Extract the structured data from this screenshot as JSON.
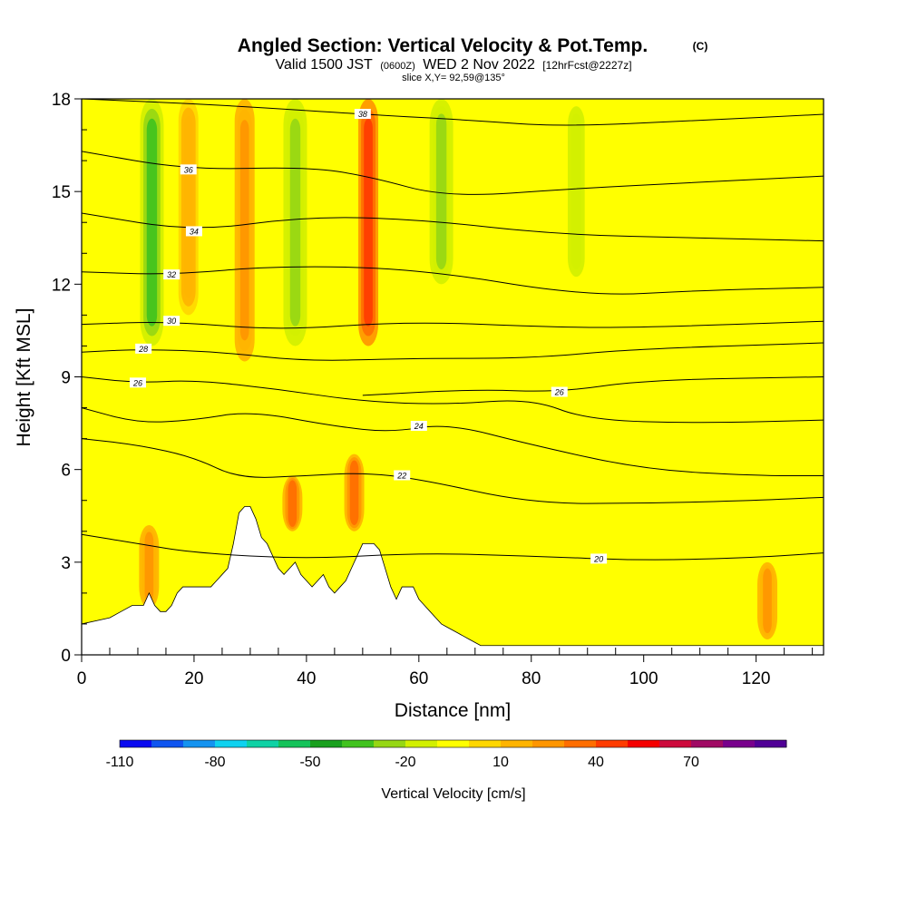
{
  "title": {
    "main": "Angled Section: Vertical Velocity & Pot.Temp.",
    "main_tag": "(C)",
    "line2_a": "Valid 1500 JST",
    "line2_b": "(0600Z)",
    "line2_c": "WED 2 Nov 2022",
    "line2_d": "[12hrFcst@2227z]",
    "line3": "slice X,Y= 92,59@135°"
  },
  "colors": {
    "scale": [
      "#0a0af0",
      "#0f55f0",
      "#1493f0",
      "#0fd2f0",
      "#0fd2a5",
      "#14c35a",
      "#19a01e",
      "#41c31e",
      "#96d714",
      "#d2f000",
      "#ffff00",
      "#ffd700",
      "#ffb400",
      "#ff9600",
      "#ff6e00",
      "#ff3c00",
      "#f50000",
      "#cd0a3c",
      "#a00a64",
      "#78008c",
      "#500096"
    ],
    "terrain": "#ffffff",
    "contour": "#000000"
  },
  "chart_data": {
    "type": "heatmap",
    "xlabel": "Distance [nm]",
    "ylabel": "Height [Kft MSL]",
    "xlim": [
      0,
      132
    ],
    "ylim": [
      0,
      18
    ],
    "xticks": [
      0,
      20,
      40,
      60,
      80,
      100,
      120
    ],
    "yticks": [
      0,
      3,
      6,
      9,
      12,
      15,
      18
    ],
    "colorbar": {
      "label": "Vertical Velocity [cm/s]",
      "ticks": [
        -110,
        -80,
        -50,
        -20,
        10,
        40,
        70
      ],
      "bins": [
        -110,
        -100,
        -90,
        -80,
        -70,
        -60,
        -50,
        -40,
        -30,
        -20,
        -10,
        0,
        10,
        20,
        30,
        40,
        50,
        60,
        70,
        80,
        90,
        100
      ]
    },
    "vertical_velocity_cells": [
      {
        "x": 12,
        "y": [
          1.5,
          4.2
        ],
        "w": 30,
        "peak": "positive"
      },
      {
        "x": 12.5,
        "y": [
          10,
          18
        ],
        "w": -40,
        "peak": "negative"
      },
      {
        "x": 19,
        "y": [
          11,
          18
        ],
        "w": 20,
        "peak": "positive"
      },
      {
        "x": 29,
        "y": [
          9.5,
          18
        ],
        "w": 35,
        "peak": "positive"
      },
      {
        "x": 37.5,
        "y": [
          4,
          5.8
        ],
        "w": 40,
        "peak": "positive"
      },
      {
        "x": 38,
        "y": [
          10,
          18
        ],
        "w": -30,
        "peak": "negative"
      },
      {
        "x": 48.5,
        "y": [
          4,
          6.5
        ],
        "w": 40,
        "peak": "positive"
      },
      {
        "x": 51,
        "y": [
          10,
          18
        ],
        "w": 60,
        "peak": "positive"
      },
      {
        "x": 64,
        "y": [
          12,
          18
        ],
        "w": -30,
        "peak": "negative"
      },
      {
        "x": 88,
        "y": [
          12,
          18
        ],
        "w": -25,
        "peak": "negative"
      },
      {
        "x": 122,
        "y": [
          0.5,
          3
        ],
        "w": 30,
        "peak": "positive"
      }
    ],
    "terrain": {
      "x": [
        0,
        5,
        7,
        9,
        10,
        11,
        12,
        13,
        14,
        15,
        16,
        17,
        18,
        19,
        20,
        21,
        22,
        23,
        24,
        25,
        26,
        27,
        28,
        29,
        30,
        31,
        32,
        33,
        34,
        35,
        36,
        37,
        38,
        39,
        40,
        41,
        42,
        43,
        44,
        45,
        46,
        47,
        48,
        49,
        50,
        51,
        52,
        53,
        54,
        55,
        56,
        57,
        58,
        59,
        60,
        61,
        62,
        63,
        64,
        65,
        66,
        67,
        68,
        69,
        70,
        71,
        72,
        132
      ],
      "height": [
        1.0,
        1.2,
        1.4,
        1.6,
        1.6,
        1.6,
        2.0,
        1.6,
        1.4,
        1.4,
        1.6,
        2.0,
        2.2,
        2.2,
        2.2,
        2.2,
        2.2,
        2.2,
        2.4,
        2.6,
        2.8,
        3.6,
        4.6,
        4.8,
        4.8,
        4.4,
        3.8,
        3.6,
        3.2,
        2.8,
        2.6,
        2.8,
        3.0,
        2.6,
        2.4,
        2.2,
        2.4,
        2.6,
        2.2,
        2.0,
        2.2,
        2.4,
        2.8,
        3.2,
        3.6,
        3.6,
        3.6,
        3.4,
        2.8,
        2.2,
        1.8,
        2.2,
        2.2,
        2.2,
        1.8,
        1.6,
        1.4,
        1.2,
        1.0,
        0.9,
        0.8,
        0.7,
        0.6,
        0.5,
        0.4,
        0.3,
        0.3,
        0.3
      ]
    },
    "pot_temp_contours": [
      {
        "level": 20,
        "label": "20",
        "label_at": [
          92,
          3.1
        ],
        "pts": [
          [
            0,
            3.9
          ],
          [
            10,
            3.6
          ],
          [
            20,
            3.3
          ],
          [
            40,
            3.1
          ],
          [
            60,
            3.3
          ],
          [
            80,
            3.2
          ],
          [
            100,
            3.05
          ],
          [
            120,
            3.15
          ],
          [
            132,
            3.3
          ]
        ]
      },
      {
        "level": 22,
        "label": "22",
        "label_at": [
          57,
          5.8
        ],
        "pts": [
          [
            0,
            7.0
          ],
          [
            10,
            6.8
          ],
          [
            20,
            6.4
          ],
          [
            28,
            5.7
          ],
          [
            40,
            5.8
          ],
          [
            50,
            5.9
          ],
          [
            60,
            5.7
          ],
          [
            80,
            4.9
          ],
          [
            100,
            4.9
          ],
          [
            120,
            5.0
          ],
          [
            132,
            5.1
          ]
        ]
      },
      {
        "level": 24,
        "label": "24",
        "label_at": [
          60,
          7.4
        ],
        "pts": [
          [
            0,
            8.0
          ],
          [
            10,
            7.5
          ],
          [
            20,
            7.6
          ],
          [
            30,
            7.9
          ],
          [
            45,
            7.4
          ],
          [
            55,
            7.2
          ],
          [
            65,
            7.5
          ],
          [
            80,
            6.8
          ],
          [
            100,
            6.0
          ],
          [
            120,
            5.8
          ],
          [
            132,
            5.8
          ]
        ]
      },
      {
        "level": 26,
        "label": "26",
        "label_at": [
          10,
          8.8
        ],
        "pts": [
          [
            0,
            9.0
          ],
          [
            10,
            8.8
          ],
          [
            20,
            8.9
          ],
          [
            35,
            8.6
          ],
          [
            50,
            8.2
          ],
          [
            65,
            8.1
          ],
          [
            80,
            8.3
          ],
          [
            90,
            7.6
          ],
          [
            110,
            7.5
          ],
          [
            132,
            7.6
          ]
        ]
      },
      {
        "level": 26,
        "label": "26",
        "label_at": [
          85,
          8.5
        ],
        "pts": [
          [
            50,
            8.4
          ],
          [
            70,
            8.6
          ],
          [
            85,
            8.5
          ],
          [
            100,
            8.9
          ],
          [
            132,
            9.0
          ]
        ]
      },
      {
        "level": 28,
        "label": "28",
        "label_at": [
          11,
          9.9
        ],
        "pts": [
          [
            0,
            9.8
          ],
          [
            11,
            9.9
          ],
          [
            25,
            9.8
          ],
          [
            40,
            9.5
          ],
          [
            58,
            9.6
          ],
          [
            80,
            9.6
          ],
          [
            98,
            9.9
          ],
          [
            132,
            10.1
          ]
        ]
      },
      {
        "level": 30,
        "label": "30",
        "label_at": [
          16,
          10.8
        ],
        "pts": [
          [
            0,
            10.7
          ],
          [
            16,
            10.8
          ],
          [
            35,
            10.5
          ],
          [
            58,
            10.8
          ],
          [
            85,
            10.6
          ],
          [
            100,
            10.6
          ],
          [
            132,
            10.8
          ]
        ]
      },
      {
        "level": 32,
        "label": "32",
        "label_at": [
          16,
          12.3
        ],
        "pts": [
          [
            0,
            12.4
          ],
          [
            16,
            12.3
          ],
          [
            35,
            12.6
          ],
          [
            60,
            12.5
          ],
          [
            90,
            11.6
          ],
          [
            110,
            11.8
          ],
          [
            132,
            11.9
          ]
        ]
      },
      {
        "level": 34,
        "label": "34",
        "label_at": [
          20,
          13.7
        ],
        "pts": [
          [
            0,
            14.3
          ],
          [
            20,
            13.7
          ],
          [
            40,
            14.2
          ],
          [
            60,
            14.1
          ],
          [
            85,
            13.6
          ],
          [
            110,
            13.5
          ],
          [
            132,
            13.4
          ]
        ]
      },
      {
        "level": 36,
        "label": "36",
        "label_at": [
          19,
          15.7
        ],
        "pts": [
          [
            0,
            16.3
          ],
          [
            19,
            15.7
          ],
          [
            40,
            15.8
          ],
          [
            51,
            15.5
          ],
          [
            65,
            14.8
          ],
          [
            88,
            15.1
          ],
          [
            110,
            15.3
          ],
          [
            132,
            15.5
          ]
        ]
      },
      {
        "level": 38,
        "label": "38",
        "label_at": [
          50,
          17.5
        ],
        "pts": [
          [
            0,
            18.0
          ],
          [
            25,
            17.8
          ],
          [
            50,
            17.5
          ],
          [
            70,
            17.3
          ],
          [
            85,
            17.1
          ],
          [
            110,
            17.3
          ],
          [
            132,
            17.5
          ]
        ]
      }
    ]
  }
}
